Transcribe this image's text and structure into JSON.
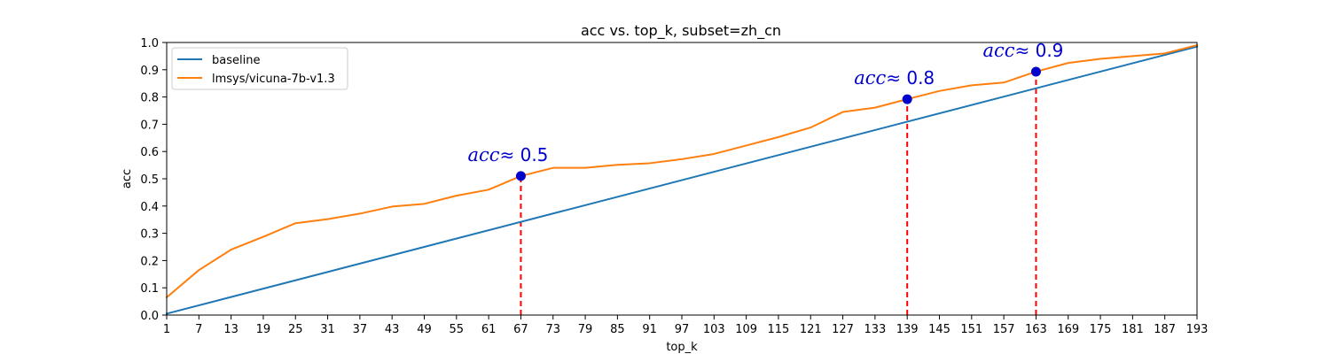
{
  "chart_data": {
    "type": "line",
    "title": "acc vs. top_k, subset=zh_cn",
    "xlabel": "top_k",
    "ylabel": "acc",
    "xlim": [
      1,
      193
    ],
    "ylim": [
      0.0,
      1.0
    ],
    "xticks": [
      1,
      7,
      13,
      19,
      25,
      31,
      37,
      43,
      49,
      55,
      61,
      67,
      73,
      79,
      85,
      91,
      97,
      103,
      109,
      115,
      121,
      127,
      133,
      139,
      145,
      151,
      157,
      163,
      169,
      175,
      181,
      187,
      193
    ],
    "xtick_labels": [
      "1",
      "7",
      "13",
      "19",
      "25",
      "31",
      "37",
      "43",
      "49",
      "55",
      "61",
      "67",
      "73",
      "79",
      "85",
      "91",
      "97",
      "103",
      "109",
      "115",
      "121",
      "127",
      "133",
      "139",
      "145",
      "151",
      "157",
      "163",
      "169",
      "175",
      "181",
      "187",
      "193"
    ],
    "yticks": [
      0.0,
      0.1,
      0.2,
      0.3,
      0.4,
      0.5,
      0.6,
      0.7,
      0.8,
      0.9,
      1.0
    ],
    "ytick_labels": [
      "0.0",
      "0.1",
      "0.2",
      "0.3",
      "0.4",
      "0.5",
      "0.6",
      "0.7",
      "0.8",
      "0.9",
      "1.0"
    ],
    "grid": false,
    "legend_position": "upper-left",
    "series": [
      {
        "name": "baseline",
        "color": "#1f77b4",
        "x": [
          1,
          193
        ],
        "y": [
          0.005,
          0.985
        ]
      },
      {
        "name": "lmsys/vicuna-7b-v1.3",
        "color": "#ff7f0e",
        "x": [
          1,
          7,
          13,
          19,
          25,
          31,
          37,
          43,
          49,
          55,
          61,
          67,
          73,
          79,
          85,
          91,
          97,
          103,
          109,
          115,
          121,
          127,
          133,
          139,
          145,
          151,
          157,
          163,
          169,
          175,
          181,
          187,
          193
        ],
        "y": [
          0.065,
          0.165,
          0.24,
          0.287,
          0.337,
          0.352,
          0.372,
          0.398,
          0.408,
          0.438,
          0.46,
          0.51,
          0.54,
          0.54,
          0.551,
          0.557,
          0.572,
          0.591,
          0.622,
          0.653,
          0.688,
          0.745,
          0.761,
          0.792,
          0.822,
          0.843,
          0.853,
          0.893,
          0.925,
          0.94,
          0.95,
          0.96,
          0.99
        ]
      }
    ],
    "annotations": [
      {
        "x": 67,
        "y": 0.51,
        "var": "acc",
        "rest": "≈ 0.5"
      },
      {
        "x": 139,
        "y": 0.792,
        "var": "acc",
        "rest": "≈ 0.8"
      },
      {
        "x": 163,
        "y": 0.893,
        "var": "acc",
        "rest": "≈ 0.9"
      }
    ],
    "annotation_color": "#0000cc",
    "marker_color": "#0000cc",
    "vline_color": "#ff0000"
  }
}
